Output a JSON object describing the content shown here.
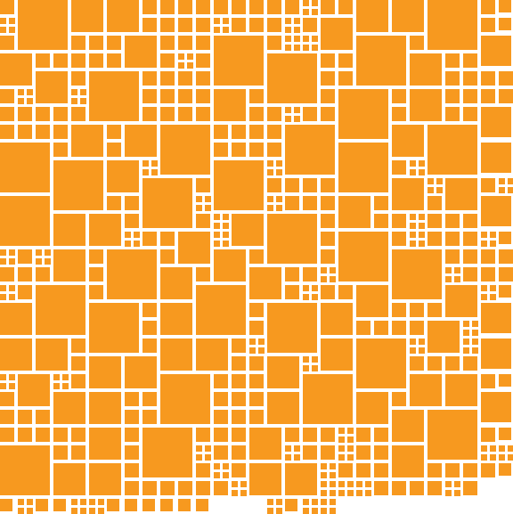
{
  "colors": {
    "tile": "#f7991f",
    "background": "#ffffff"
  }
}
